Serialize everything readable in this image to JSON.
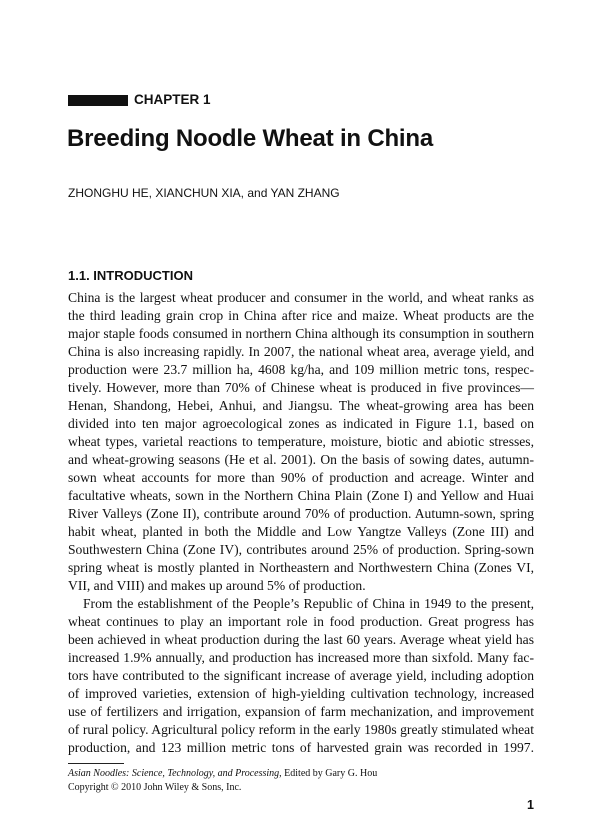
{
  "chapter": {
    "label": "CHAPTER 1"
  },
  "title": "Breeding Noodle Wheat in China",
  "authors": "ZHONGHU HE, XIANCHUN XIA, and YAN ZHANG",
  "section_heading": "1.1.  INTRODUCTION",
  "paragraphs": [
    {
      "lines": [
        "China is the largest wheat producer and consumer in the world, and wheat ranks as",
        "the third leading grain crop in China after rice and maize. Wheat products are the",
        "major staple foods consumed in northern China although its consumption in southern",
        "China is also increasing rapidly. In 2007, the national wheat area, average yield, and",
        "production were 23.7 million ha, 4608 kg/ha, and 109 million metric tons, respec-",
        "tively. However, more than 70% of Chinese wheat is produced in five provinces—",
        "Henan, Shandong, Hebei, Anhui, and Jiangsu. The wheat-growing area has been",
        "divided into ten major agroecological zones as indicated in Figure 1.1, based on",
        "wheat types, varietal reactions to temperature, moisture, biotic and abiotic stresses,",
        "and wheat-growing seasons (He et al. 2001). On the basis of sowing dates, autumn-",
        "sown wheat accounts for more than 90% of production and acreage. Winter and",
        "facultative wheats, sown in the Northern China Plain (Zone I) and Yellow and Huai",
        "River Valleys (Zone II), contribute around 70% of production. Autumn-sown, spring",
        "habit wheat, planted in both the Middle and Low Yangtze Valleys (Zone III) and",
        "Southwestern China (Zone IV), contributes around 25% of production. Spring-sown",
        "spring wheat is mostly planted in Northeastern and Northwestern China (Zones VI,",
        "VII, and VIII) and makes up around 5% of production."
      ]
    },
    {
      "lines": [
        "From the establishment of the People’s Republic of China in 1949 to the present,",
        "wheat continues to play an important role in food production. Great progress has",
        "been achieved in wheat production during the last 60 years. Average wheat yield has",
        "increased 1.9% annually, and production has increased more than sixfold. Many fac-",
        "tors have contributed to the significant increase of average yield, including adoption",
        "of improved varieties, extension of high-yielding cultivation technology, increased",
        "use of fertilizers and irrigation, expansion of farm mechanization, and improvement",
        "of rural policy. Agricultural policy reform in the early 1980s greatly stimulated wheat",
        "production, and 123 million metric tons of harvested grain was recorded in 1997."
      ]
    }
  ],
  "footnote": {
    "book_title": "Asian Noodles: Science, Technology, and Processing,",
    "editor": " Edited by Gary G. Hou",
    "copyright": "Copyright © 2010 John Wiley & Sons, Inc."
  },
  "page_number": "1"
}
